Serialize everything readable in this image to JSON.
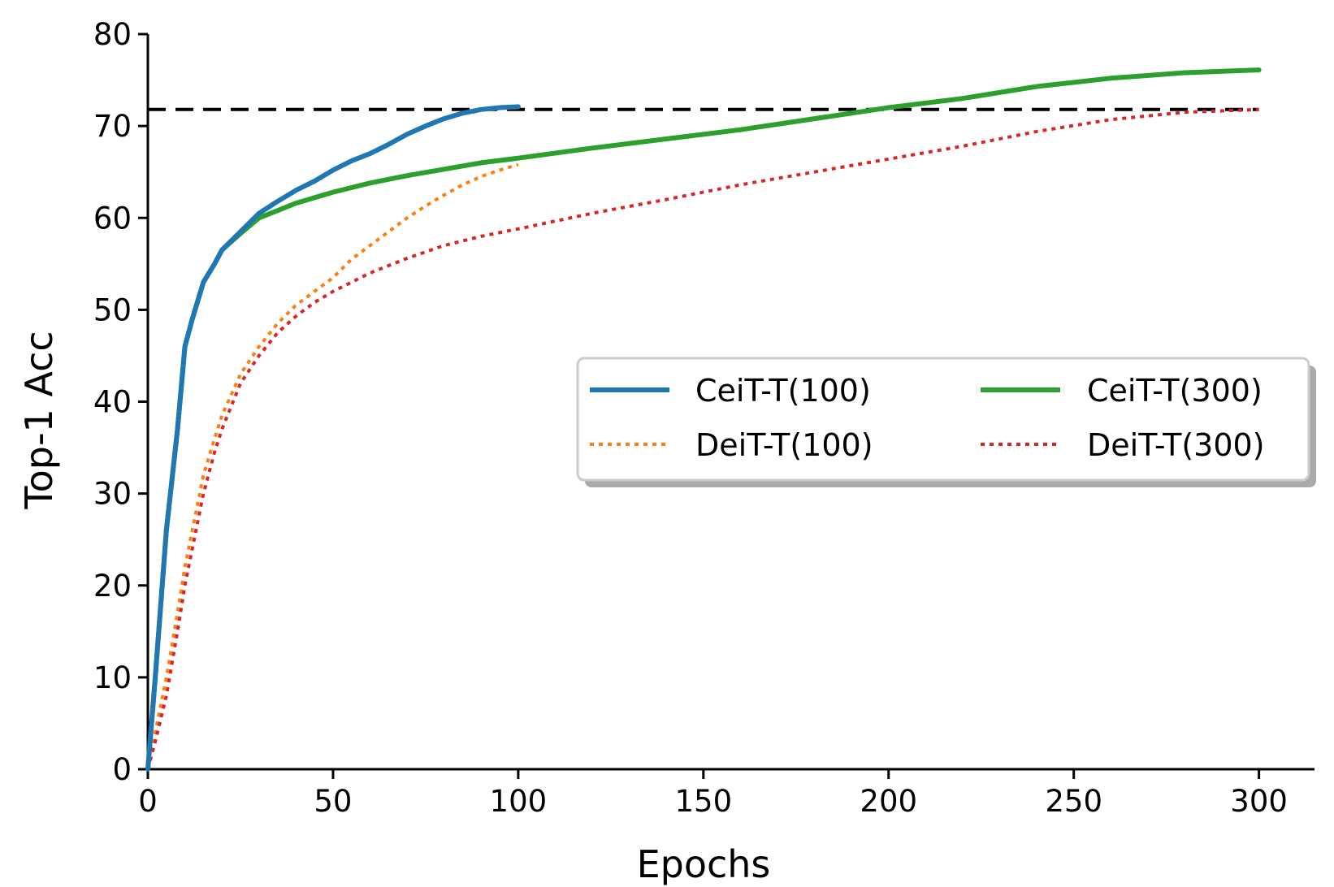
{
  "chart_data": {
    "type": "line",
    "xlabel": "Epochs",
    "ylabel": "Top-1 Acc",
    "xlim": [
      0,
      315
    ],
    "ylim": [
      0,
      80
    ],
    "xticks": [
      0,
      50,
      100,
      150,
      200,
      250,
      300
    ],
    "yticks": [
      0,
      10,
      20,
      30,
      40,
      50,
      60,
      70,
      80
    ],
    "grid": false,
    "legend_position": "right",
    "reference_line": {
      "y": 71.8,
      "style": "dashed",
      "color": "#000000"
    },
    "series": [
      {
        "name": "CeiT-T(100)",
        "color": "#1f77b4",
        "style": "solid",
        "x": [
          0,
          2,
          5,
          8,
          10,
          12,
          15,
          18,
          20,
          25,
          30,
          35,
          40,
          45,
          50,
          55,
          60,
          65,
          70,
          75,
          80,
          85,
          90,
          95,
          100
        ],
        "y": [
          0,
          10,
          26,
          37,
          46,
          49,
          53,
          55,
          56.5,
          58.5,
          60.5,
          61.8,
          63,
          64,
          65.2,
          66.2,
          67,
          68,
          69.1,
          70,
          70.8,
          71.4,
          71.8,
          72.0,
          72.1
        ]
      },
      {
        "name": "DeiT-T(100)",
        "color": "#ff7f0e",
        "style": "dotted",
        "x": [
          0,
          2,
          5,
          8,
          10,
          12,
          15,
          18,
          20,
          25,
          30,
          35,
          40,
          45,
          50,
          55,
          60,
          65,
          70,
          75,
          80,
          85,
          90,
          95,
          100
        ],
        "y": [
          0,
          4,
          10,
          17,
          22,
          26,
          32,
          36,
          38.5,
          43,
          46,
          48.5,
          50.5,
          52,
          53.5,
          55.5,
          57,
          58.5,
          60,
          61.3,
          62.5,
          63.6,
          64.5,
          65.2,
          65.8
        ]
      },
      {
        "name": "CeiT-T(300)",
        "color": "#2ca02c",
        "style": "solid",
        "x": [
          0,
          2,
          5,
          8,
          10,
          12,
          15,
          18,
          20,
          25,
          30,
          35,
          40,
          50,
          60,
          70,
          80,
          90,
          100,
          120,
          140,
          160,
          180,
          200,
          220,
          240,
          260,
          280,
          300
        ],
        "y": [
          0,
          10,
          26,
          37,
          46,
          49,
          53,
          55,
          56.5,
          58.3,
          60,
          60.8,
          61.6,
          62.8,
          63.8,
          64.6,
          65.3,
          66,
          66.5,
          67.6,
          68.6,
          69.6,
          70.8,
          72,
          73,
          74.3,
          75.2,
          75.8,
          76.1
        ]
      },
      {
        "name": "DeiT-T(300)",
        "color": "#d62728",
        "style": "dotted",
        "x": [
          0,
          2,
          5,
          8,
          10,
          12,
          15,
          18,
          20,
          25,
          30,
          35,
          40,
          45,
          50,
          60,
          70,
          80,
          90,
          100,
          120,
          140,
          160,
          180,
          200,
          220,
          240,
          260,
          280,
          300
        ],
        "y": [
          0,
          3,
          8,
          15,
          20,
          24,
          30,
          34.5,
          37,
          42,
          45,
          47.5,
          49.3,
          50.8,
          52,
          54,
          55.6,
          57,
          58,
          58.8,
          60.5,
          62,
          63.6,
          65,
          66.4,
          67.8,
          69.4,
          70.7,
          71.5,
          71.8
        ]
      }
    ]
  }
}
